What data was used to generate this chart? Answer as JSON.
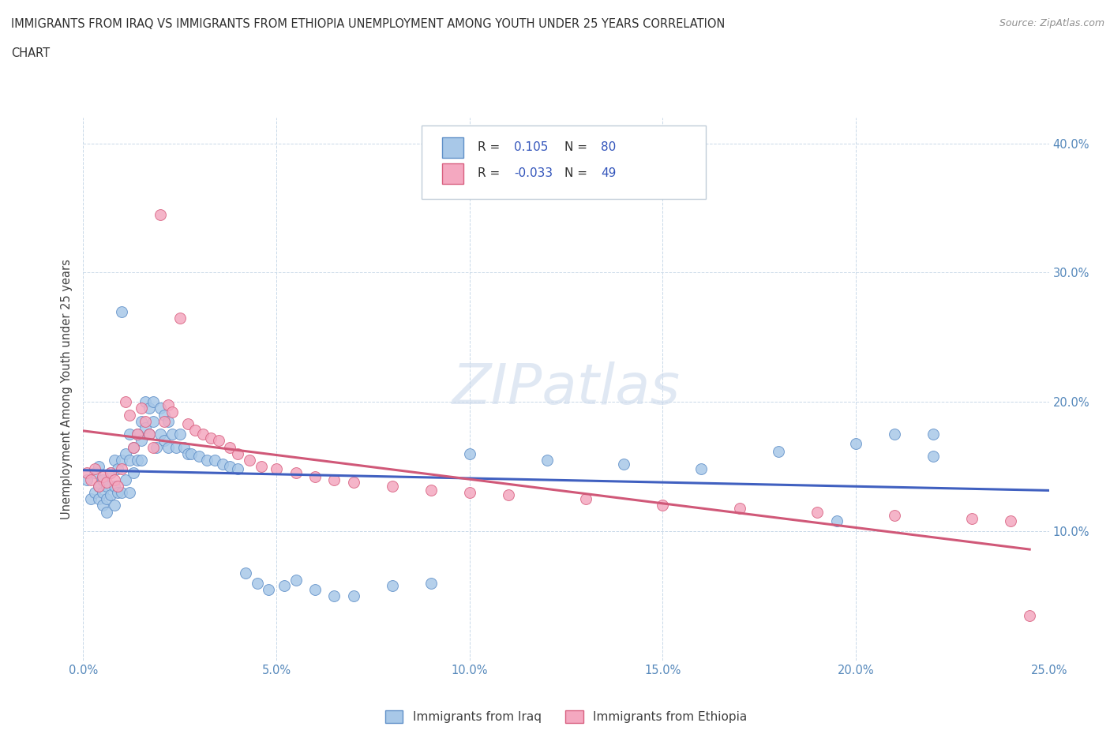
{
  "title_line1": "IMMIGRANTS FROM IRAQ VS IMMIGRANTS FROM ETHIOPIA UNEMPLOYMENT AMONG YOUTH UNDER 25 YEARS CORRELATION",
  "title_line2": "CHART",
  "source": "Source: ZipAtlas.com",
  "ylabel": "Unemployment Among Youth under 25 years",
  "xlim": [
    0.0,
    0.25
  ],
  "ylim": [
    0.0,
    0.42
  ],
  "iraq_R": 0.105,
  "iraq_N": 80,
  "ethiopia_R": -0.033,
  "ethiopia_N": 49,
  "iraq_color": "#a8c8e8",
  "iraq_edge": "#6090c8",
  "ethiopia_color": "#f4a8c0",
  "ethiopia_edge": "#d86080",
  "iraq_line_color": "#4060c0",
  "ethiopia_line_color": "#d05878",
  "watermark": "ZIPatlas",
  "watermark_color": "#ccdaec",
  "legend_labels": [
    "Immigrants from Iraq",
    "Immigrants from Ethiopia"
  ],
  "iraq_x": [
    0.001,
    0.002,
    0.003,
    0.003,
    0.004,
    0.004,
    0.004,
    0.005,
    0.005,
    0.005,
    0.006,
    0.006,
    0.006,
    0.007,
    0.007,
    0.008,
    0.008,
    0.008,
    0.009,
    0.009,
    0.01,
    0.01,
    0.01,
    0.011,
    0.011,
    0.012,
    0.012,
    0.012,
    0.013,
    0.013,
    0.014,
    0.014,
    0.015,
    0.015,
    0.015,
    0.016,
    0.016,
    0.017,
    0.017,
    0.018,
    0.018,
    0.019,
    0.02,
    0.02,
    0.021,
    0.021,
    0.022,
    0.022,
    0.023,
    0.024,
    0.025,
    0.026,
    0.027,
    0.028,
    0.03,
    0.032,
    0.034,
    0.036,
    0.038,
    0.04,
    0.042,
    0.045,
    0.048,
    0.052,
    0.055,
    0.06,
    0.065,
    0.07,
    0.08,
    0.09,
    0.1,
    0.12,
    0.14,
    0.16,
    0.18,
    0.195,
    0.2,
    0.21,
    0.22,
    0.22
  ],
  "iraq_y": [
    0.14,
    0.125,
    0.145,
    0.13,
    0.15,
    0.135,
    0.125,
    0.14,
    0.13,
    0.12,
    0.135,
    0.125,
    0.115,
    0.145,
    0.128,
    0.155,
    0.135,
    0.12,
    0.148,
    0.13,
    0.27,
    0.155,
    0.13,
    0.16,
    0.14,
    0.175,
    0.155,
    0.13,
    0.165,
    0.145,
    0.175,
    0.155,
    0.185,
    0.17,
    0.155,
    0.2,
    0.18,
    0.195,
    0.175,
    0.2,
    0.185,
    0.165,
    0.195,
    0.175,
    0.19,
    0.17,
    0.185,
    0.165,
    0.175,
    0.165,
    0.175,
    0.165,
    0.16,
    0.16,
    0.158,
    0.155,
    0.155,
    0.152,
    0.15,
    0.148,
    0.068,
    0.06,
    0.055,
    0.058,
    0.062,
    0.055,
    0.05,
    0.05,
    0.058,
    0.06,
    0.16,
    0.155,
    0.152,
    0.148,
    0.162,
    0.108,
    0.168,
    0.175,
    0.158,
    0.175
  ],
  "ethiopia_x": [
    0.001,
    0.002,
    0.003,
    0.004,
    0.005,
    0.006,
    0.007,
    0.008,
    0.009,
    0.01,
    0.011,
    0.012,
    0.013,
    0.014,
    0.015,
    0.016,
    0.017,
    0.018,
    0.02,
    0.021,
    0.022,
    0.023,
    0.025,
    0.027,
    0.029,
    0.031,
    0.033,
    0.035,
    0.038,
    0.04,
    0.043,
    0.046,
    0.05,
    0.055,
    0.06,
    0.065,
    0.07,
    0.08,
    0.09,
    0.1,
    0.11,
    0.13,
    0.15,
    0.17,
    0.19,
    0.21,
    0.23,
    0.24,
    0.245
  ],
  "ethiopia_y": [
    0.145,
    0.14,
    0.148,
    0.135,
    0.142,
    0.138,
    0.145,
    0.14,
    0.135,
    0.148,
    0.2,
    0.19,
    0.165,
    0.175,
    0.195,
    0.185,
    0.175,
    0.165,
    0.345,
    0.185,
    0.198,
    0.192,
    0.265,
    0.183,
    0.178,
    0.175,
    0.172,
    0.17,
    0.165,
    0.16,
    0.155,
    0.15,
    0.148,
    0.145,
    0.142,
    0.14,
    0.138,
    0.135,
    0.132,
    0.13,
    0.128,
    0.125,
    0.12,
    0.118,
    0.115,
    0.112,
    0.11,
    0.108,
    0.035
  ]
}
